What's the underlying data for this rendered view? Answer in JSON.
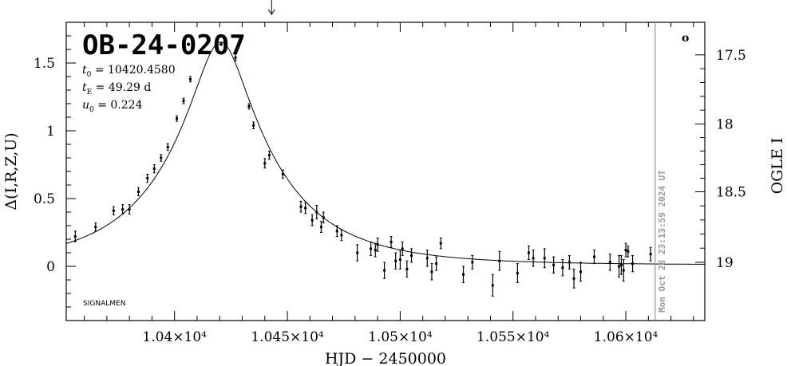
{
  "chart_data": {
    "type": "scatter",
    "title": "OB-24-0207",
    "xlabel": "HJD − 2450000",
    "ylabel_left": "Δ(I,R,Z,U)",
    "ylabel_right": "OGLE I",
    "xlim": [
      10352,
      10635
    ],
    "ylim": [
      -0.4,
      1.8
    ],
    "x_ticks": [
      {
        "value": 10400,
        "label": "1.04×10⁴"
      },
      {
        "value": 10450,
        "label": "1.045×10⁴"
      },
      {
        "value": 10500,
        "label": "1.05×10⁴"
      },
      {
        "value": 10550,
        "label": "1.055×10⁴"
      },
      {
        "value": 10600,
        "label": "1.06×10⁴"
      }
    ],
    "y_ticks_left": [
      {
        "value": 0,
        "label": "0"
      },
      {
        "value": 0.5,
        "label": "0.5"
      },
      {
        "value": 1,
        "label": "1"
      },
      {
        "value": 1.5,
        "label": "1.5"
      }
    ],
    "y_ticks_right": [
      {
        "value": 1.56,
        "label": "17.5"
      },
      {
        "value": 1.05,
        "label": "18"
      },
      {
        "value": 0.55,
        "label": "18.5"
      },
      {
        "value": 0.03,
        "label": "19"
      }
    ],
    "params": [
      {
        "sym": "t",
        "sub": "0",
        "text": " = 10420.4580"
      },
      {
        "sym": "t",
        "sub": "E",
        "text": " = 49.29  d"
      },
      {
        "sym": "u",
        "sub": "0",
        "text": " = 0.224"
      }
    ],
    "model": {
      "t0": 10420.458,
      "tE": 49.29,
      "u0": 0.224,
      "baseline": 0.01
    },
    "points": [
      [
        10356,
        0.22,
        0.04
      ],
      [
        10365,
        0.29,
        0.03
      ],
      [
        10373,
        0.41,
        0.03
      ],
      [
        10377,
        0.42,
        0.035
      ],
      [
        10380,
        0.42,
        0.035
      ],
      [
        10384,
        0.55,
        0.03
      ],
      [
        10388,
        0.65,
        0.03
      ],
      [
        10391,
        0.72,
        0.03
      ],
      [
        10394,
        0.8,
        0.025
      ],
      [
        10397,
        0.88,
        0.025
      ],
      [
        10401,
        1.09,
        0.02
      ],
      [
        10404,
        1.22,
        0.02
      ],
      [
        10407,
        1.38,
        0.02
      ],
      [
        10427,
        1.54,
        0.025
      ],
      [
        10433,
        1.18,
        0.02
      ],
      [
        10435,
        1.04,
        0.025
      ],
      [
        10440,
        0.76,
        0.035
      ],
      [
        10442,
        0.82,
        0.03
      ],
      [
        10448,
        0.68,
        0.03
      ],
      [
        10456,
        0.44,
        0.04
      ],
      [
        10458,
        0.43,
        0.04
      ],
      [
        10461,
        0.34,
        0.04
      ],
      [
        10463,
        0.4,
        0.05
      ],
      [
        10465,
        0.29,
        0.04
      ],
      [
        10466,
        0.36,
        0.04
      ],
      [
        10472,
        0.26,
        0.04
      ],
      [
        10474,
        0.23,
        0.04
      ],
      [
        10481,
        0.1,
        0.06
      ],
      [
        10487,
        0.13,
        0.05
      ],
      [
        10489,
        0.12,
        0.05
      ],
      [
        10490,
        0.16,
        0.05
      ],
      [
        10493,
        -0.03,
        0.06
      ],
      [
        10496,
        0.18,
        0.04
      ],
      [
        10498,
        0.04,
        0.06
      ],
      [
        10500,
        0.05,
        0.07
      ],
      [
        10501,
        0.13,
        0.05
      ],
      [
        10503,
        -0.02,
        0.06
      ],
      [
        10505,
        0.08,
        0.05
      ],
      [
        10512,
        0.06,
        0.06
      ],
      [
        10514,
        -0.04,
        0.06
      ],
      [
        10516,
        0.02,
        0.05
      ],
      [
        10518,
        0.17,
        0.04
      ],
      [
        10528,
        -0.06,
        0.06
      ],
      [
        10532,
        0.03,
        0.05
      ],
      [
        10541,
        -0.14,
        0.08
      ],
      [
        10544,
        0.04,
        0.07
      ],
      [
        10552,
        -0.05,
        0.07
      ],
      [
        10557,
        0.1,
        0.05
      ],
      [
        10559,
        0.06,
        0.06
      ],
      [
        10564,
        0.06,
        0.07
      ],
      [
        10568,
        0.01,
        0.06
      ],
      [
        10572,
        -0.01,
        0.06
      ],
      [
        10575,
        0.03,
        0.05
      ],
      [
        10577,
        -0.09,
        0.07
      ],
      [
        10580,
        -0.04,
        0.07
      ],
      [
        10586,
        0.07,
        0.05
      ],
      [
        10593,
        0.03,
        0.06
      ],
      [
        10597,
        0.0,
        0.08
      ],
      [
        10598,
        0.01,
        0.07
      ],
      [
        10599,
        -0.03,
        0.08
      ],
      [
        10600,
        0.12,
        0.05
      ],
      [
        10601,
        0.11,
        0.04
      ],
      [
        10603,
        0.02,
        0.06
      ],
      [
        10611,
        0.09,
        0.05
      ]
    ],
    "current_time_line": 10613,
    "arrow_marker": 10443,
    "stamp_text": "Mon Oct 28 23:13:59 2024 UT",
    "footer_label": "SIGNALMEN",
    "corner_mark": "o",
    "grid": false
  }
}
